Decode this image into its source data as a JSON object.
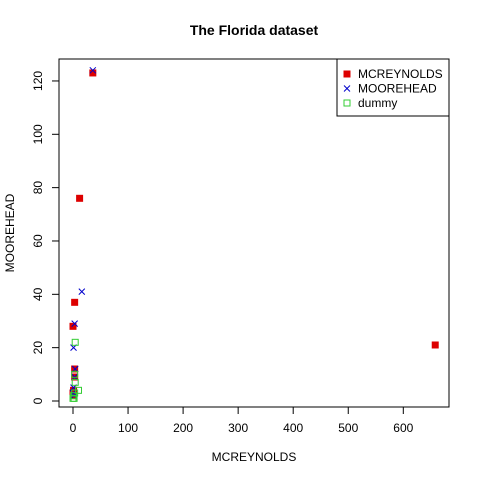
{
  "chart_data": {
    "type": "scatter",
    "title": "The Florida dataset",
    "xlabel": "MCREYNOLDS",
    "ylabel": "MOOREHEAD",
    "xlim": [
      0,
      650
    ],
    "ylim": [
      0,
      120
    ],
    "x_ticks": [
      0,
      100,
      200,
      300,
      400,
      500,
      600
    ],
    "y_ticks": [
      0,
      20,
      40,
      60,
      80,
      100,
      120
    ],
    "grid": false,
    "legend_position": "top-right",
    "series": [
      {
        "name": "MCREYNOLDS",
        "marker": "filled-square",
        "color": "#dd0000",
        "points": [
          {
            "x": 0,
            "y": 28
          },
          {
            "x": 3,
            "y": 37
          },
          {
            "x": 12,
            "y": 76
          },
          {
            "x": 36,
            "y": 123
          },
          {
            "x": 658,
            "y": 21
          },
          {
            "x": 3,
            "y": 12
          },
          {
            "x": 3,
            "y": 9
          },
          {
            "x": 1,
            "y": 4
          },
          {
            "x": 0,
            "y": 3
          },
          {
            "x": 1,
            "y": 2
          }
        ]
      },
      {
        "name": "MOOREHEAD",
        "marker": "cross",
        "color": "#0000cc",
        "points": [
          {
            "x": 3,
            "y": 29
          },
          {
            "x": 36,
            "y": 124
          },
          {
            "x": 16,
            "y": 41
          },
          {
            "x": 1,
            "y": 20
          },
          {
            "x": 4,
            "y": 12
          },
          {
            "x": 3,
            "y": 9
          },
          {
            "x": 1,
            "y": 5
          },
          {
            "x": 0,
            "y": 3
          },
          {
            "x": 2,
            "y": 2
          }
        ]
      },
      {
        "name": "dummy",
        "marker": "open-square",
        "color": "#33cc33",
        "points": [
          {
            "x": 4,
            "y": 22
          },
          {
            "x": 3,
            "y": 10
          },
          {
            "x": 4,
            "y": 7
          },
          {
            "x": 10,
            "y": 4
          },
          {
            "x": 3,
            "y": 3
          },
          {
            "x": 1,
            "y": 2
          },
          {
            "x": 0,
            "y": 1
          },
          {
            "x": 2,
            "y": 1
          }
        ]
      }
    ]
  }
}
